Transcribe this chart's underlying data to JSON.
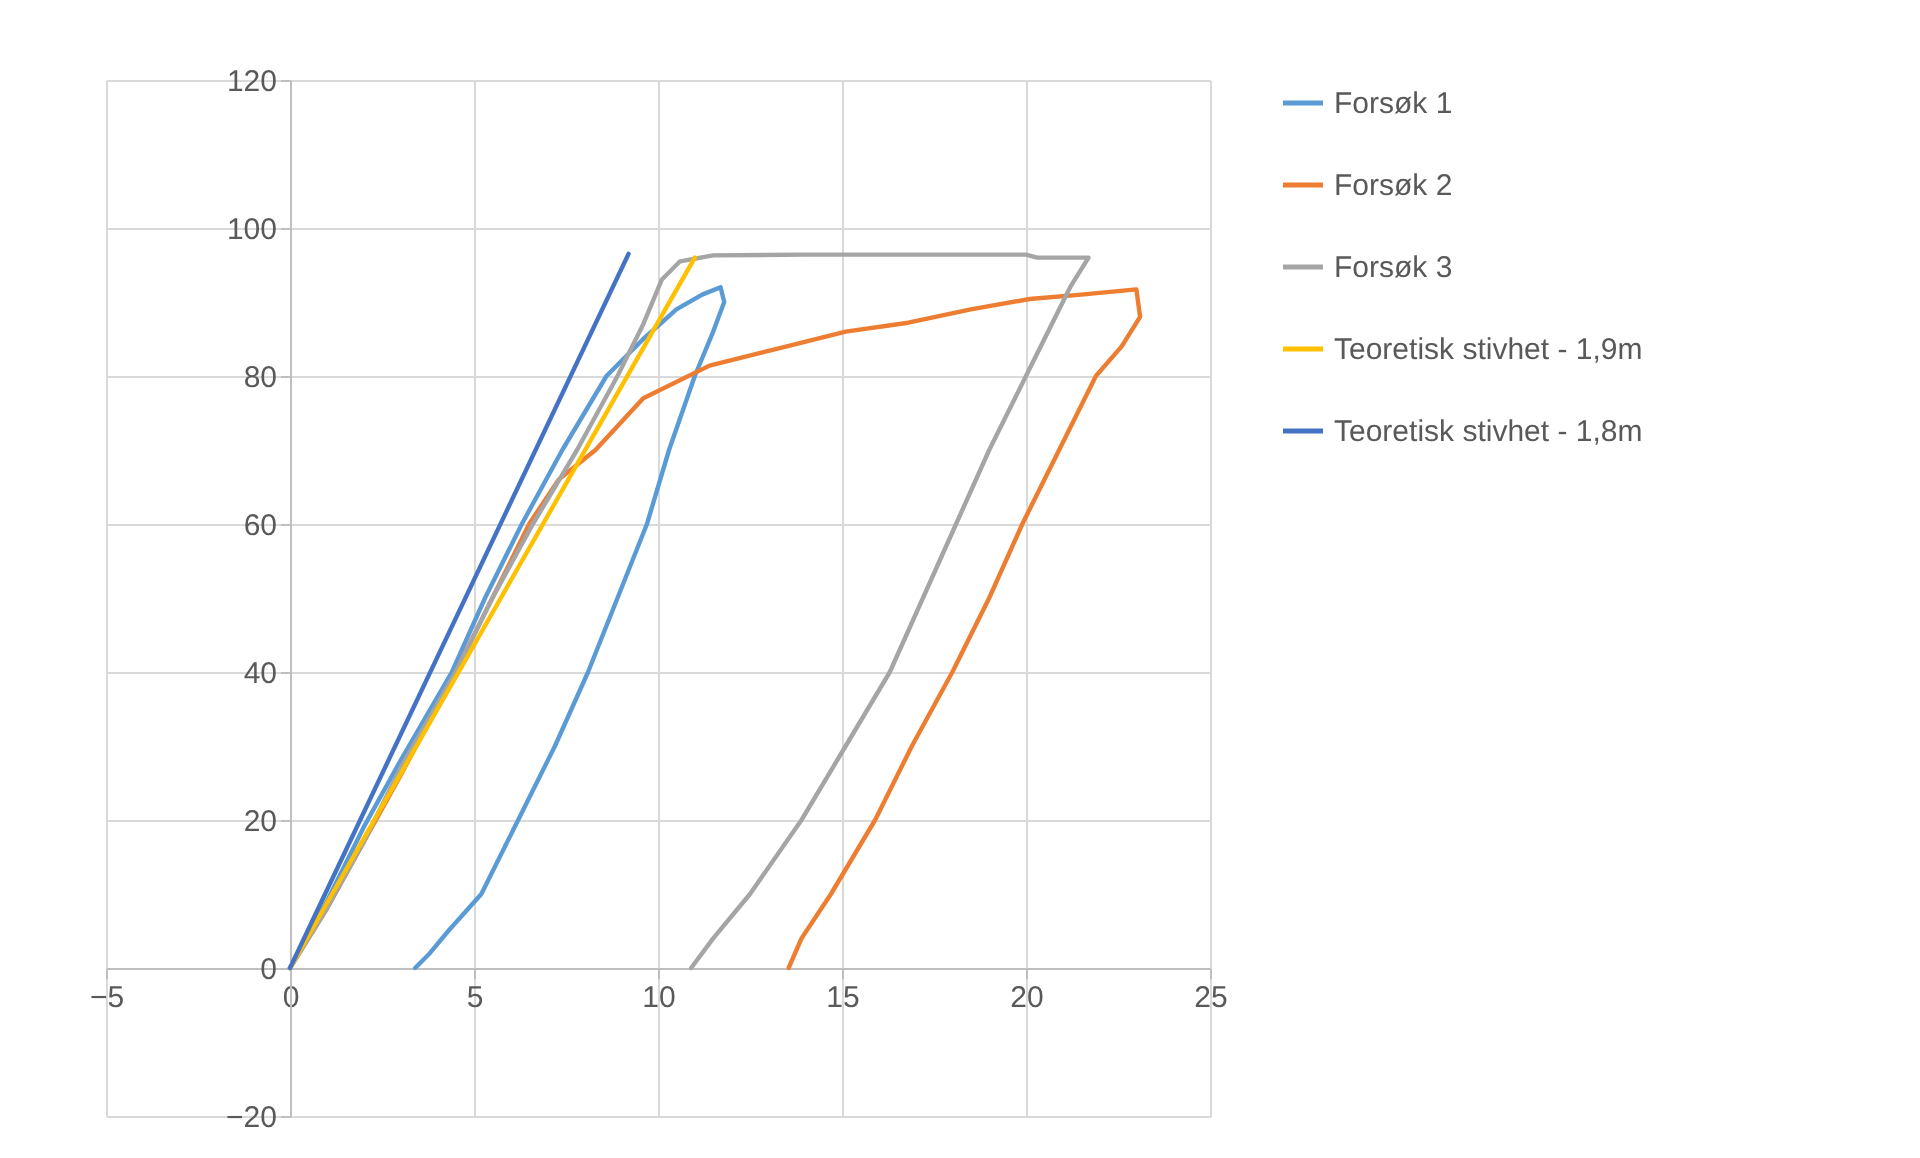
{
  "chart_data": {
    "type": "line",
    "xlim": [
      -5,
      25
    ],
    "ylim": [
      -20,
      120
    ],
    "xticks": [
      -5,
      0,
      5,
      10,
      15,
      20,
      25
    ],
    "yticks": [
      -20,
      0,
      20,
      40,
      60,
      80,
      100,
      120
    ],
    "grid": true,
    "legend": "right",
    "marker": "none",
    "line_style": "solid",
    "series": [
      {
        "name": "Forsøk 1",
        "color": "#5b9bd5",
        "x": [
          0,
          1,
          2,
          3,
          4.4,
          5.3,
          6.3,
          7.4,
          8.6,
          9.6,
          10.5,
          11.2,
          11.7,
          11.8,
          11.5,
          11,
          10.3,
          9.7,
          8.9,
          8.1,
          7.2,
          6.2,
          5.2,
          4.3,
          3.8,
          3.4
        ],
        "values": [
          0,
          9,
          19,
          28,
          40,
          50,
          60,
          70,
          80,
          85,
          89,
          91,
          92,
          90,
          86,
          80,
          70,
          60,
          50,
          40,
          30,
          20,
          10,
          5,
          2,
          0
        ]
      },
      {
        "name": "Forsøk 2",
        "color": "#ed7d31",
        "x": [
          0,
          1,
          2,
          3,
          4.4,
          5.5,
          6.5,
          7.3,
          8.3,
          9.6,
          11.4,
          13.5,
          15.1,
          16.8,
          18.5,
          20.1,
          21.5,
          23,
          23.1,
          22.6,
          21.9,
          20.9,
          19.9,
          19,
          18,
          16.9,
          15.9,
          14.7,
          13.9,
          13.55
        ],
        "values": [
          0,
          8,
          17,
          26,
          39,
          50,
          60,
          66,
          70,
          77,
          81.4,
          84,
          86,
          87.2,
          89,
          90.4,
          91,
          91.7,
          88,
          84,
          80,
          70,
          60,
          50,
          40,
          30,
          20,
          10,
          4,
          0
        ]
      },
      {
        "name": "Forsøk 3",
        "color": "#a5a5a5",
        "x": [
          0,
          1,
          2,
          3,
          4.5,
          5.5,
          6.6,
          7.8,
          8.9,
          9.6,
          10.1,
          10.6,
          11.5,
          14,
          17,
          20,
          20.3,
          21.7,
          21.2,
          20,
          19,
          18.1,
          17.2,
          16.3,
          15.1,
          13.9,
          12.5,
          11.5,
          10.9
        ],
        "values": [
          0,
          8,
          17,
          27,
          40,
          50,
          60,
          70,
          80,
          87,
          93,
          95.5,
          96.3,
          96.4,
          96.4,
          96.4,
          96,
          96,
          92,
          80,
          70,
          60,
          50,
          40,
          30,
          20,
          10,
          4,
          0
        ]
      },
      {
        "name": "Teoretisk stivhet - 1,9m",
        "color": "#ffc000",
        "x": [
          0,
          11
        ],
        "values": [
          0,
          96
        ]
      },
      {
        "name": "Teoretisk stivhet - 1,8m",
        "color": "#4472c4",
        "x": [
          0,
          9.2
        ],
        "values": [
          0,
          96.5
        ]
      }
    ]
  }
}
